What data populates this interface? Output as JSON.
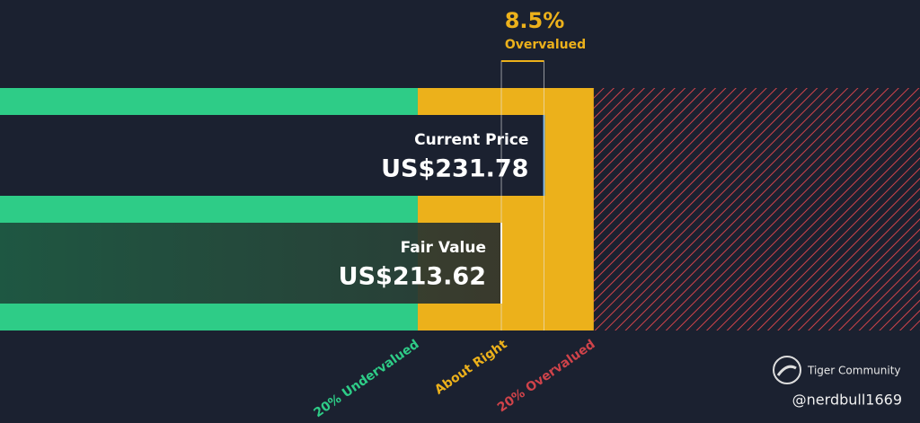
{
  "chart_data": {
    "type": "valuation",
    "annotation": {
      "value": 8.5,
      "value_label": "8.5%",
      "text": "Overvalued",
      "color": "#ecb11b"
    },
    "series": [
      {
        "name": "Current Price",
        "value": 231.78,
        "value_label": "US$231.78",
        "color": "#1b2130"
      },
      {
        "name": "Fair Value",
        "value": 213.62,
        "value_label": "US$213.62",
        "color": "#1f4a3a"
      }
    ],
    "zones": [
      {
        "name": "20% Undervalued",
        "end": 178,
        "color": "#2ecc87"
      },
      {
        "name": "About Right",
        "end": 253,
        "color": "#ecb11b"
      },
      {
        "name": "20% Overvalued",
        "end": 392,
        "color": "#d0434a"
      }
    ],
    "xlim": [
      0,
      392
    ]
  },
  "watermark": {
    "brand": "Tiger Community",
    "user": "@nerdbull1669"
  }
}
